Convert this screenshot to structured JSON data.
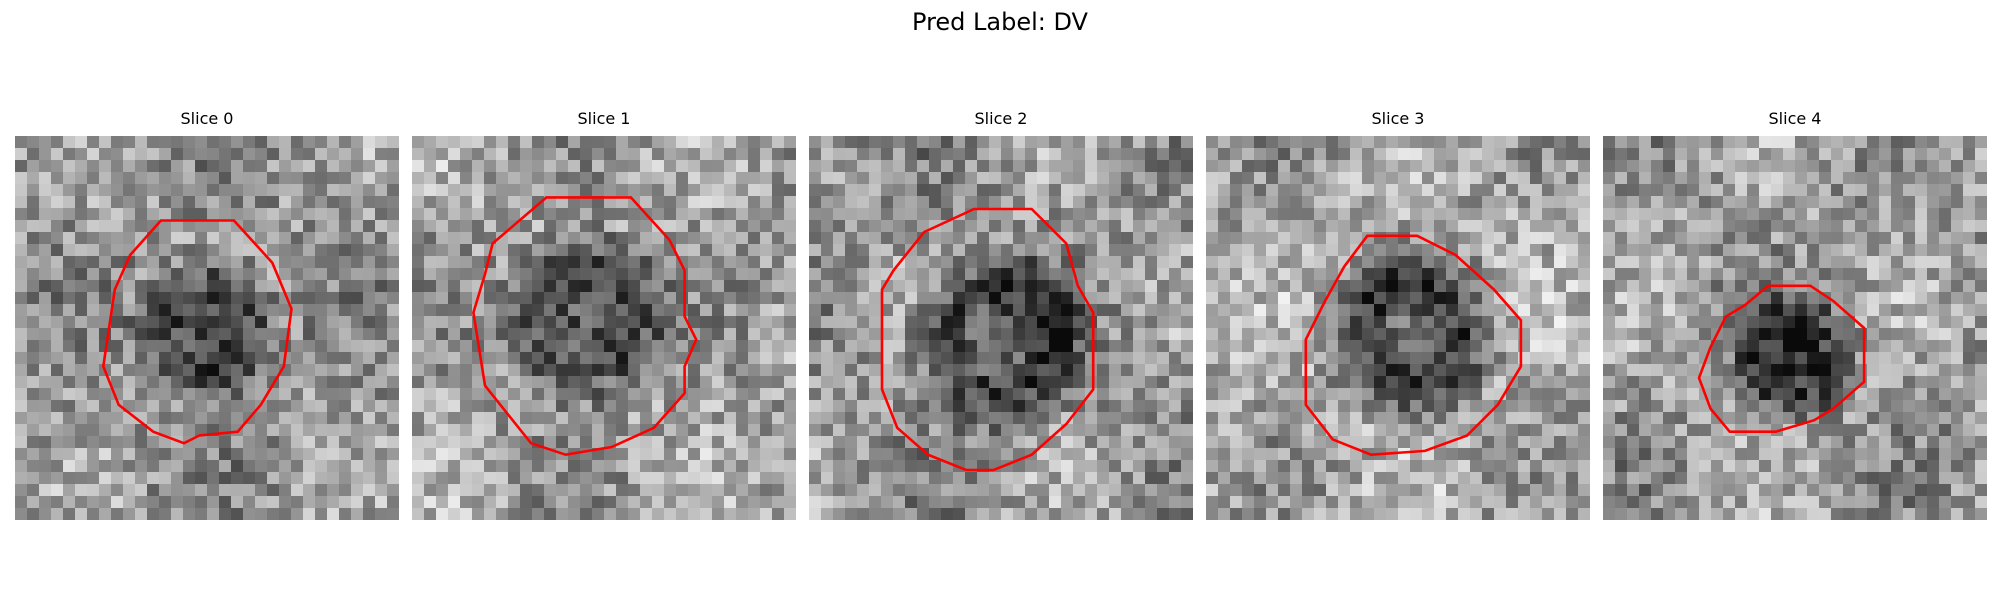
{
  "figure": {
    "title": "Pred Label: DV"
  },
  "panels": [
    {
      "title": "Slice 0",
      "pattern": "dark-blob"
    },
    {
      "title": "Slice 1",
      "pattern": "dark-blob"
    },
    {
      "title": "Slice 2",
      "pattern": "ring"
    },
    {
      "title": "Slice 3",
      "pattern": "ring"
    },
    {
      "title": "Slice 4",
      "pattern": "faint"
    }
  ],
  "colors": {
    "contour": "#ff0000",
    "background": "#ffffff"
  },
  "colormap": "gray",
  "grid_cells": 32
}
